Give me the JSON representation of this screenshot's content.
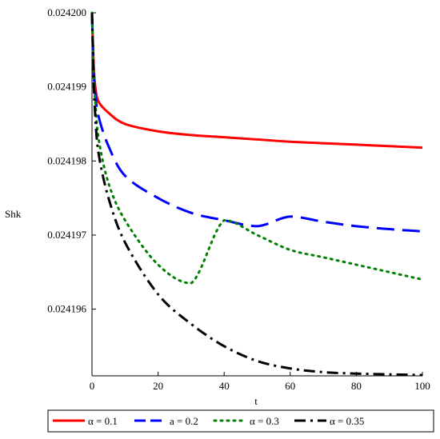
{
  "chart_data": {
    "type": "line",
    "title": "",
    "xlabel": "t",
    "ylabel": "Shk",
    "xlim": [
      0,
      100
    ],
    "ylim": [
      0.0241951,
      0.0242
    ],
    "x_ticks": [
      0,
      20,
      40,
      60,
      80,
      100
    ],
    "x_tick_labels": [
      "0",
      "20",
      "40",
      "60",
      "80",
      "100"
    ],
    "y_ticks": [
      0.024196,
      0.024197,
      0.024198,
      0.024199,
      0.0242
    ],
    "y_tick_labels": [
      "0.024196",
      "0.024197",
      "0.024198",
      "0.024199",
      "0.024200"
    ],
    "grid": false,
    "legend_position": "bottom",
    "x": [
      0,
      0.5,
      1,
      2,
      5,
      10,
      20,
      30,
      40,
      50,
      60,
      70,
      80,
      90,
      100
    ],
    "series": [
      {
        "name": "α = 0.1",
        "color": "#ff0000",
        "dash": "solid",
        "values": [
          0.0242,
          0.0241993,
          0.024199,
          0.0241988,
          0.02419865,
          0.0241985,
          0.0241984,
          0.02419835,
          0.02419832,
          0.02419829,
          0.02419826,
          0.02419824,
          0.02419822,
          0.0241982,
          0.02419818
        ]
      },
      {
        "name": "a = 0.2",
        "color": "#0000ff",
        "dash": "dash",
        "values": [
          0.0242,
          0.0241992,
          0.0241989,
          0.0241986,
          0.0241982,
          0.0241978,
          0.0241975,
          0.0241973,
          0.0241972,
          0.02419712,
          0.02419725,
          0.02419718,
          0.02419712,
          0.02419708,
          0.02419705
        ]
      },
      {
        "name": "α = 0.3",
        "color": "#008000",
        "dash": "dot",
        "values": [
          0.0242,
          0.0241992,
          0.0241988,
          0.0241983,
          0.0241977,
          0.0241972,
          0.0241966,
          0.02419635,
          0.0241972,
          0.024197,
          0.0241968,
          0.0241967,
          0.0241966,
          0.0241965,
          0.0241964
        ]
      },
      {
        "name": "α = 0.35",
        "color": "#000000",
        "dash": "dashdot",
        "values": [
          0.0242,
          0.0241991,
          0.0241986,
          0.0241981,
          0.0241975,
          0.0241969,
          0.0241962,
          0.0241958,
          0.0241955,
          0.0241953,
          0.0241952,
          0.02419515,
          0.02419513,
          0.02419512,
          0.02419511
        ]
      }
    ]
  }
}
